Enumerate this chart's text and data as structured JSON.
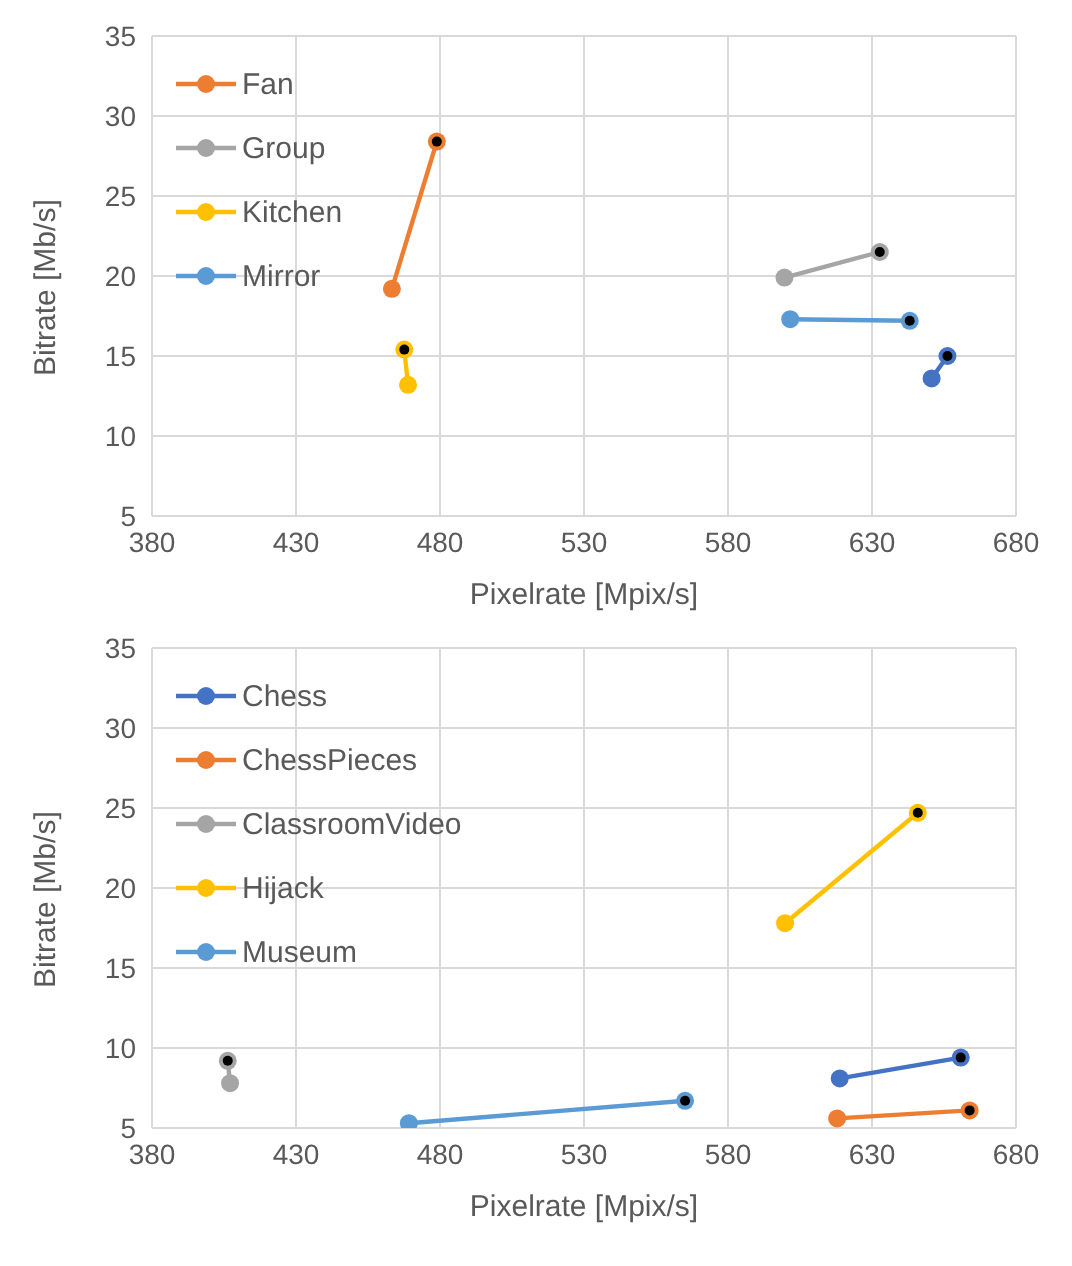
{
  "chart_data": [
    {
      "type": "line",
      "xlabel": "Pixelrate [Mpix/s]",
      "ylabel": "Bitrate [Mb/s]",
      "xlim": [
        380,
        680
      ],
      "xticks": [
        380,
        430,
        480,
        530,
        580,
        630,
        680
      ],
      "ylim": [
        5,
        35
      ],
      "yticks": [
        5,
        10,
        15,
        20,
        25,
        30,
        35
      ],
      "grid": true,
      "legend": "top left",
      "marker": "circle",
      "series": [
        {
          "color": "#4472c4",
          "x": [
            650.7,
            656.2
          ],
          "values": [
            13.6,
            15.0
          ]
        },
        {
          "name": "Fan",
          "color": "#ed7d31",
          "x": [
            463.3,
            478.9
          ],
          "values": [
            19.2,
            28.4
          ]
        },
        {
          "name": "Group",
          "color": "#a5a5a5",
          "x": [
            599.6,
            632.7
          ],
          "values": [
            19.9,
            21.5
          ]
        },
        {
          "name": "Kitchen",
          "color": "#ffc000",
          "x": [
            468.9,
            467.6
          ],
          "values": [
            13.2,
            15.4
          ]
        },
        {
          "name": "Mirror",
          "color": "#5b9bd5",
          "x": [
            601.6,
            643.1
          ],
          "values": [
            17.3,
            17.2
          ]
        },
        {
          "type": "scatter",
          "color": "#000000",
          "x": [
            656.2,
            478.9,
            632.7,
            467.6,
            643.1
          ],
          "values": [
            15.0,
            28.4,
            21.5,
            15.4,
            17.2
          ]
        }
      ]
    },
    {
      "type": "line",
      "xlabel": "Pixelrate [Mpix/s]",
      "ylabel": "Bitrate [Mb/s]",
      "xlim": [
        380,
        680
      ],
      "xticks": [
        380,
        430,
        480,
        530,
        580,
        630,
        680
      ],
      "ylim": [
        5,
        35
      ],
      "yticks": [
        5,
        10,
        15,
        20,
        25,
        30,
        35
      ],
      "grid": true,
      "legend": "top left",
      "marker": "circle",
      "series": [
        {
          "name": "Chess",
          "color": "#4472c4",
          "x": [
            618.8,
            660.8
          ],
          "values": [
            8.1,
            9.4
          ]
        },
        {
          "name": "ChessPieces",
          "color": "#ed7d31",
          "x": [
            617.9,
            663.9
          ],
          "values": [
            5.6,
            6.1
          ]
        },
        {
          "name": "ClassroomVideo",
          "color": "#a5a5a5",
          "x": [
            407.1,
            406.3
          ],
          "values": [
            7.8,
            9.2
          ]
        },
        {
          "name": "Hijack",
          "color": "#ffc000",
          "x": [
            599.8,
            645.9
          ],
          "values": [
            17.8,
            24.7
          ]
        },
        {
          "name": "Museum",
          "color": "#5b9bd5",
          "x": [
            469.2,
            565.1
          ],
          "values": [
            5.3,
            6.7
          ]
        },
        {
          "type": "scatter",
          "color": "#000000",
          "x": [
            660.8,
            663.9,
            406.3,
            645.9,
            565.1
          ],
          "values": [
            9.4,
            6.1,
            9.2,
            24.7,
            6.7
          ]
        }
      ]
    }
  ]
}
